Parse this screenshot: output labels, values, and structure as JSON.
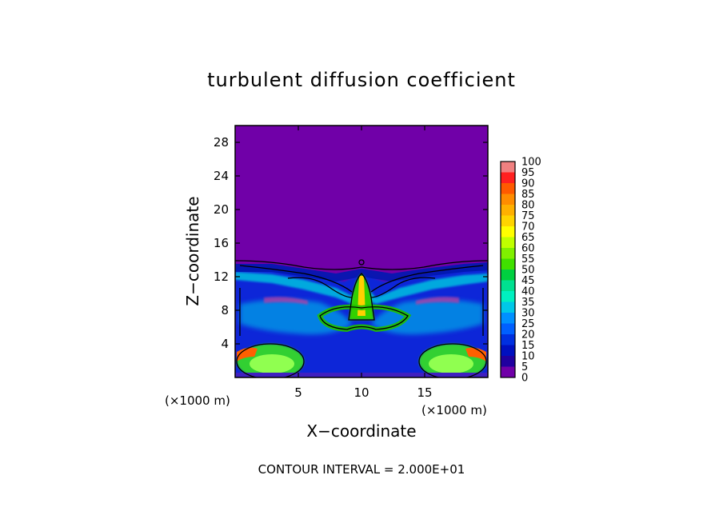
{
  "chart_data": {
    "type": "heatmap",
    "title": "turbulent diffusion coefficient",
    "xlabel": "X−coordinate",
    "ylabel": "Z−coordinate",
    "x_unit": "(×1000 m)",
    "y_unit": "(×1000 m)",
    "xlim": [
      0,
      20
    ],
    "ylim": [
      0,
      30
    ],
    "x_ticks": [
      5,
      10,
      15
    ],
    "y_ticks": [
      4,
      8,
      12,
      16,
      20,
      24,
      28
    ],
    "contour_interval_text": "CONTOUR INTERVAL = 2.000E+01",
    "colorbar": {
      "min": 0,
      "max": 100,
      "labels": [
        100,
        95,
        90,
        85,
        80,
        75,
        70,
        65,
        60,
        55,
        50,
        45,
        40,
        35,
        30,
        25,
        20,
        15,
        10,
        5,
        0
      ],
      "colors": [
        "#f08080",
        "#ff2020",
        "#ff5a00",
        "#ff8c00",
        "#ffb000",
        "#ffd400",
        "#ffff00",
        "#c0ff00",
        "#80f000",
        "#40e000",
        "#00d040",
        "#00e090",
        "#00f0c0",
        "#00c8e8",
        "#0090ff",
        "#0060ff",
        "#0030e0",
        "#0010c0",
        "#2000a0",
        "#7000a8"
      ]
    },
    "background_color": "#7000a8"
  }
}
